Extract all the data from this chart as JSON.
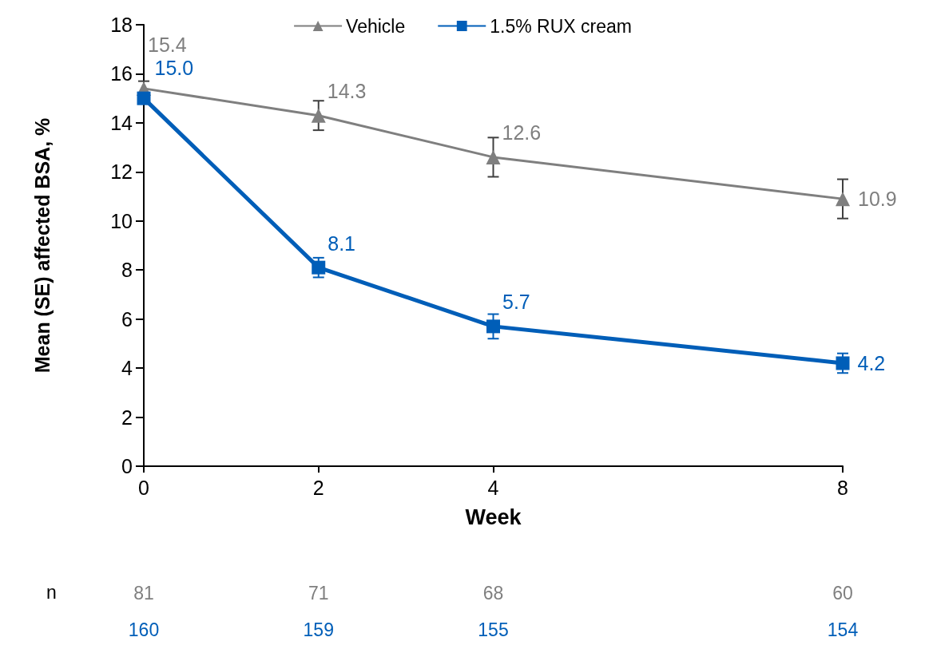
{
  "chart_data": {
    "type": "line",
    "xlabel": "Week",
    "ylabel": "Mean (SE) affected BSA, %",
    "x": [
      0,
      2,
      4,
      8
    ],
    "xlim": [
      0,
      8
    ],
    "xticks": [
      0,
      2,
      4,
      8
    ],
    "ylim": [
      0,
      18
    ],
    "yticks": [
      0,
      2,
      4,
      6,
      8,
      10,
      12,
      14,
      16,
      18
    ],
    "grid": false,
    "legend": "top",
    "series": [
      {
        "name": "Vehicle",
        "color": "#7f7f7f",
        "marker": "triangle",
        "values": [
          15.4,
          14.3,
          12.6,
          10.9
        ],
        "errors": [
          0.3,
          0.6,
          0.8,
          0.8
        ],
        "value_labels": [
          "15.4",
          "14.3",
          "12.6",
          "10.9"
        ]
      },
      {
        "name": "1.5% RUX cream",
        "color": "#005eb8",
        "marker": "square",
        "values": [
          15.0,
          8.1,
          5.7,
          4.2
        ],
        "errors": [
          null,
          0.4,
          0.5,
          0.4
        ],
        "value_labels": [
          "15.0",
          "8.1",
          "5.7",
          "4.2"
        ]
      }
    ],
    "annotations": [
      "n",
      "81",
      "71",
      "68",
      "60",
      "160",
      "159",
      "155",
      "154"
    ]
  }
}
